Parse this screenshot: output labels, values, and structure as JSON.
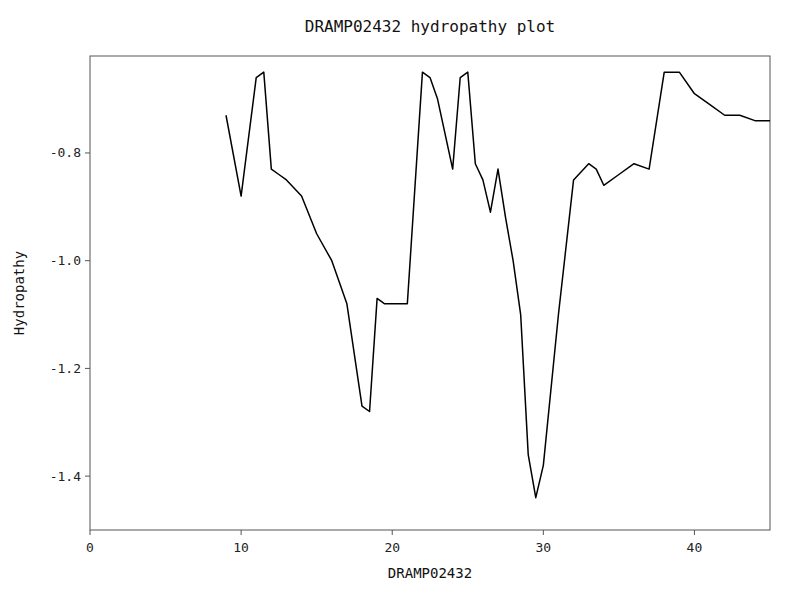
{
  "chart_data": {
    "type": "line",
    "title": "DRAMP02432 hydropathy plot",
    "x_label": "DRAMP02432",
    "y_label": "Hydropathy",
    "color": "#000000",
    "grid": false,
    "xlim": [
      0,
      45
    ],
    "ylim": [
      -1.5,
      -0.62
    ],
    "xticks": [
      0,
      10,
      20,
      30,
      40
    ],
    "yticks": [
      -1.4,
      -1.2,
      {
        "value": -1.0,
        "label": "-1.0"
      },
      -0.8
    ],
    "x": [
      9,
      10,
      11,
      11.5,
      12,
      12.5,
      13,
      14,
      15,
      16,
      17,
      18,
      18.5,
      19,
      19.5,
      20,
      21,
      22,
      22.5,
      23,
      24,
      24.5,
      25,
      25.5,
      26,
      26.5,
      27,
      27.5,
      28,
      28.5,
      29,
      29.5,
      30,
      31,
      32,
      33,
      33.5,
      34,
      35,
      36,
      37,
      38,
      39,
      40,
      41,
      42,
      43,
      44,
      45
    ],
    "values": [
      -0.73,
      -0.88,
      -0.66,
      -0.65,
      -0.83,
      -0.84,
      -0.85,
      -0.88,
      -0.95,
      -1.0,
      -1.08,
      -1.27,
      -1.28,
      -1.07,
      -1.08,
      -1.08,
      -1.08,
      -0.65,
      -0.66,
      -0.7,
      -0.83,
      -0.66,
      -0.65,
      -0.82,
      -0.85,
      -0.91,
      -0.83,
      -0.92,
      -1.0,
      -1.1,
      -1.36,
      -1.44,
      -1.38,
      -1.1,
      -0.85,
      -0.82,
      -0.83,
      -0.86,
      -0.84,
      -0.82,
      -0.83,
      -0.65,
      -0.65,
      -0.69,
      -0.71,
      -0.73,
      -0.73,
      -0.74,
      -0.74
    ]
  }
}
